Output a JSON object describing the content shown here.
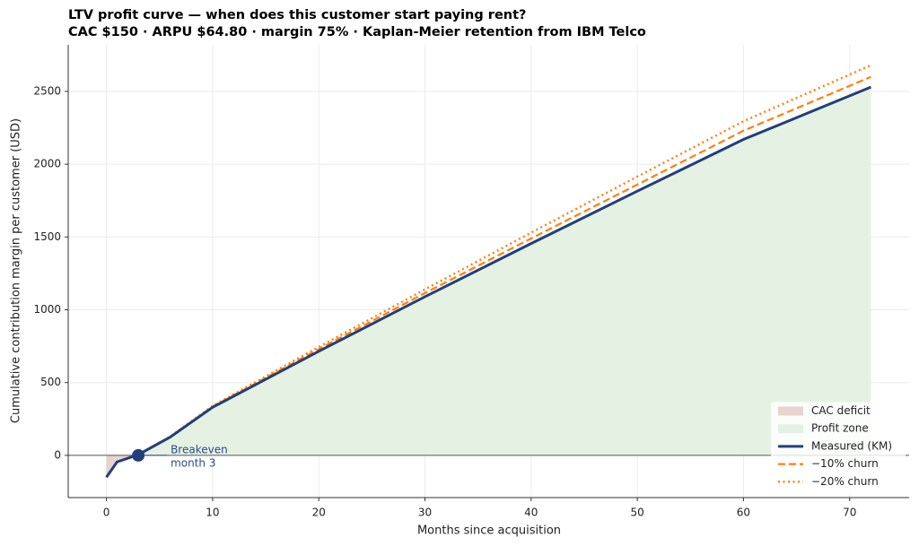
{
  "chart_data": {
    "type": "line",
    "title": "LTV profit curve — when does this customer start paying rent?",
    "subtitle": "CAC $150 · ARPU $64.80 · margin 75% · Kaplan-Meier retention from IBM Telco",
    "x_label": "Months since acquisition",
    "y_label": "Cumulative contribution margin per customer (USD)",
    "x": [
      0,
      1,
      2,
      3,
      6,
      10,
      20,
      30,
      40,
      50,
      60,
      72
    ],
    "series": [
      {
        "name": "Measured (KM)",
        "color": "#233f7a",
        "style": "solid",
        "values": [
          -150,
          -45,
          -20,
          5,
          125,
          330,
          715,
          1090,
          1455,
          1815,
          2170,
          2530
        ]
      },
      {
        "name": "−10% churn",
        "color": "#ff7f0e",
        "style": "dashed",
        "values": [
          -150,
          -45,
          -19,
          6,
          127,
          335,
          730,
          1115,
          1490,
          1860,
          2230,
          2600
        ]
      },
      {
        "name": "−20% churn",
        "color": "#ff7f0e",
        "style": "dotted",
        "values": [
          -150,
          -44,
          -18,
          7,
          129,
          340,
          745,
          1140,
          1530,
          1915,
          2295,
          2680
        ]
      }
    ],
    "fills": [
      {
        "name": "CAC deficit",
        "color": "#e8d3d0"
      },
      {
        "name": "Profit zone",
        "color": "#e5f2e3"
      }
    ],
    "annotation": {
      "lines": [
        "Breakeven",
        "month 3"
      ],
      "x": 3,
      "y": 0,
      "color": "#2e4a8a"
    },
    "xlim": [
      -3.6,
      75.6
    ],
    "xticks": [
      0,
      10,
      20,
      30,
      40,
      50,
      60,
      70
    ],
    "ylim": [
      -290,
      2820
    ],
    "yticks": [
      0,
      500,
      1000,
      1500,
      2000,
      2500
    ],
    "grid": true,
    "legend": "lower right"
  }
}
